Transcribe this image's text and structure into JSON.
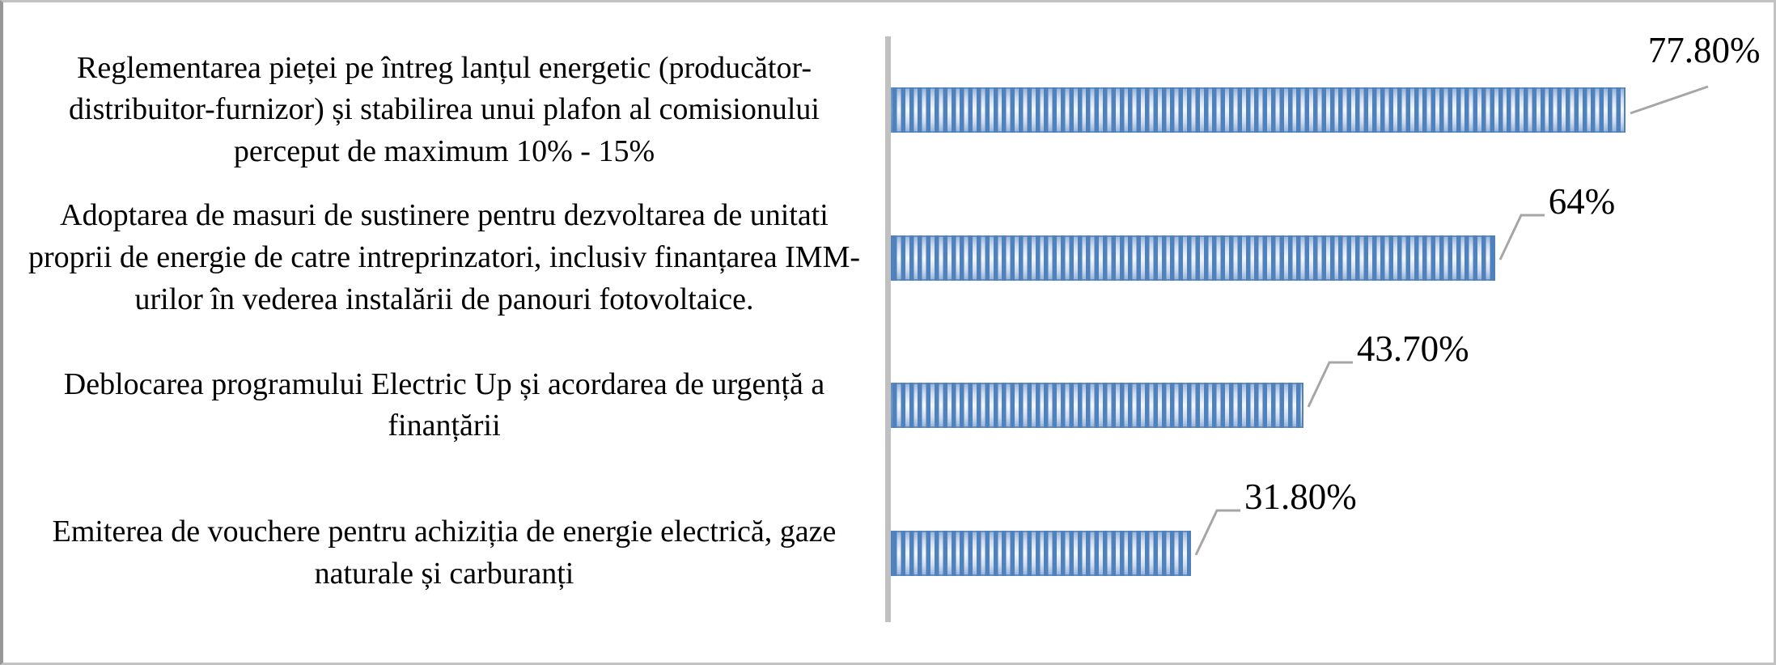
{
  "chart_data": {
    "type": "bar",
    "orientation": "horizontal",
    "title": "",
    "xlabel": "",
    "ylabel": "",
    "xlim": [
      0,
      93.5
    ],
    "gridlines": false,
    "legend": "none",
    "categories": [
      "Reglementarea pieței pe întreg lanțul energetic (producător-distribuitor-furnizor) și stabilirea unui plafon al comisionului perceput de maximum 10% - 15%",
      "Adoptarea de masuri de sustinere pentru dezvoltarea de unitati proprii de energie de catre intreprinzatori, inclusiv finanțarea IMM-urilor în vederea instalării de panouri fotovoltaice.",
      "Deblocarea programului Electric Up și acordarea de urgență a finanțării",
      "Emiterea de vouchere pentru achiziția de energie electrică, gaze naturale și carburanți"
    ],
    "values": [
      77.8,
      64,
      43.7,
      31.8
    ],
    "value_labels": [
      "77.80%",
      "64%",
      "43.70%",
      "31.80%"
    ],
    "bar_color": "#4f81bd",
    "bar_pattern": "vertical-stripes",
    "axis_line_color": "#c0c0c0",
    "leader_line_color": "#a6a6a6",
    "data_label_color": "#000000",
    "category_label_color": "#000000"
  }
}
